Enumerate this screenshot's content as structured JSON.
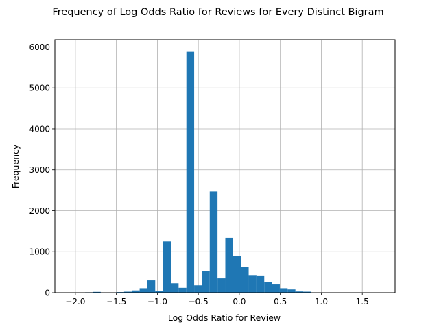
{
  "chart_data": {
    "type": "bar",
    "title": "Frequency of Log Odds Ratio for Reviews for Every Distinct Bigram",
    "xlabel": "Log Odds Ratio for Review",
    "ylabel": "Frequency",
    "xlim": [
      -2.25,
      1.9
    ],
    "ylim": [
      0,
      6175
    ],
    "grid": true,
    "bar_color": "#1f77b4",
    "x_ticks": [
      {
        "value": -2.0,
        "label": "−2.0"
      },
      {
        "value": -1.5,
        "label": "−1.5"
      },
      {
        "value": -1.0,
        "label": "−1.0"
      },
      {
        "value": -0.5,
        "label": "−0.5"
      },
      {
        "value": 0.0,
        "label": "0.0"
      },
      {
        "value": 0.5,
        "label": "0.5"
      },
      {
        "value": 1.0,
        "label": "1.0"
      },
      {
        "value": 1.5,
        "label": "1.5"
      }
    ],
    "y_ticks": [
      {
        "value": 0,
        "label": "0"
      },
      {
        "value": 1000,
        "label": "1000"
      },
      {
        "value": 2000,
        "label": "2000"
      },
      {
        "value": 3000,
        "label": "3000"
      },
      {
        "value": 4000,
        "label": "4000"
      },
      {
        "value": 5000,
        "label": "5000"
      },
      {
        "value": 6000,
        "label": "6000"
      }
    ],
    "bin_width": 0.095,
    "bins": [
      {
        "x0": -2.166,
        "value": 0
      },
      {
        "x0": -2.071,
        "value": 0
      },
      {
        "x0": -1.976,
        "value": 3
      },
      {
        "x0": -1.881,
        "value": 10
      },
      {
        "x0": -1.786,
        "value": 20
      },
      {
        "x0": -1.691,
        "value": 5
      },
      {
        "x0": -1.596,
        "value": 8
      },
      {
        "x0": -1.501,
        "value": 15
      },
      {
        "x0": -1.406,
        "value": 25
      },
      {
        "x0": -1.311,
        "value": 55
      },
      {
        "x0": -1.216,
        "value": 110
      },
      {
        "x0": -1.121,
        "value": 300
      },
      {
        "x0": -1.026,
        "value": 40
      },
      {
        "x0": -0.931,
        "value": 1250
      },
      {
        "x0": -0.836,
        "value": 230
      },
      {
        "x0": -0.741,
        "value": 120
      },
      {
        "x0": -0.646,
        "value": 5880
      },
      {
        "x0": -0.551,
        "value": 180
      },
      {
        "x0": -0.456,
        "value": 520
      },
      {
        "x0": -0.361,
        "value": 2470
      },
      {
        "x0": -0.266,
        "value": 350
      },
      {
        "x0": -0.171,
        "value": 1340
      },
      {
        "x0": -0.076,
        "value": 890
      },
      {
        "x0": 0.019,
        "value": 620
      },
      {
        "x0": 0.114,
        "value": 430
      },
      {
        "x0": 0.209,
        "value": 420
      },
      {
        "x0": 0.304,
        "value": 260
      },
      {
        "x0": 0.399,
        "value": 200
      },
      {
        "x0": 0.494,
        "value": 110
      },
      {
        "x0": 0.589,
        "value": 80
      },
      {
        "x0": 0.684,
        "value": 30
      },
      {
        "x0": 0.779,
        "value": 25
      },
      {
        "x0": 0.874,
        "value": 5
      },
      {
        "x0": 0.969,
        "value": 3
      },
      {
        "x0": 1.064,
        "value": 2
      },
      {
        "x0": 1.159,
        "value": 2
      },
      {
        "x0": 1.254,
        "value": 1
      },
      {
        "x0": 1.349,
        "value": 1
      },
      {
        "x0": 1.444,
        "value": 1
      },
      {
        "x0": 1.539,
        "value": 0
      },
      {
        "x0": 1.634,
        "value": 0
      }
    ]
  }
}
